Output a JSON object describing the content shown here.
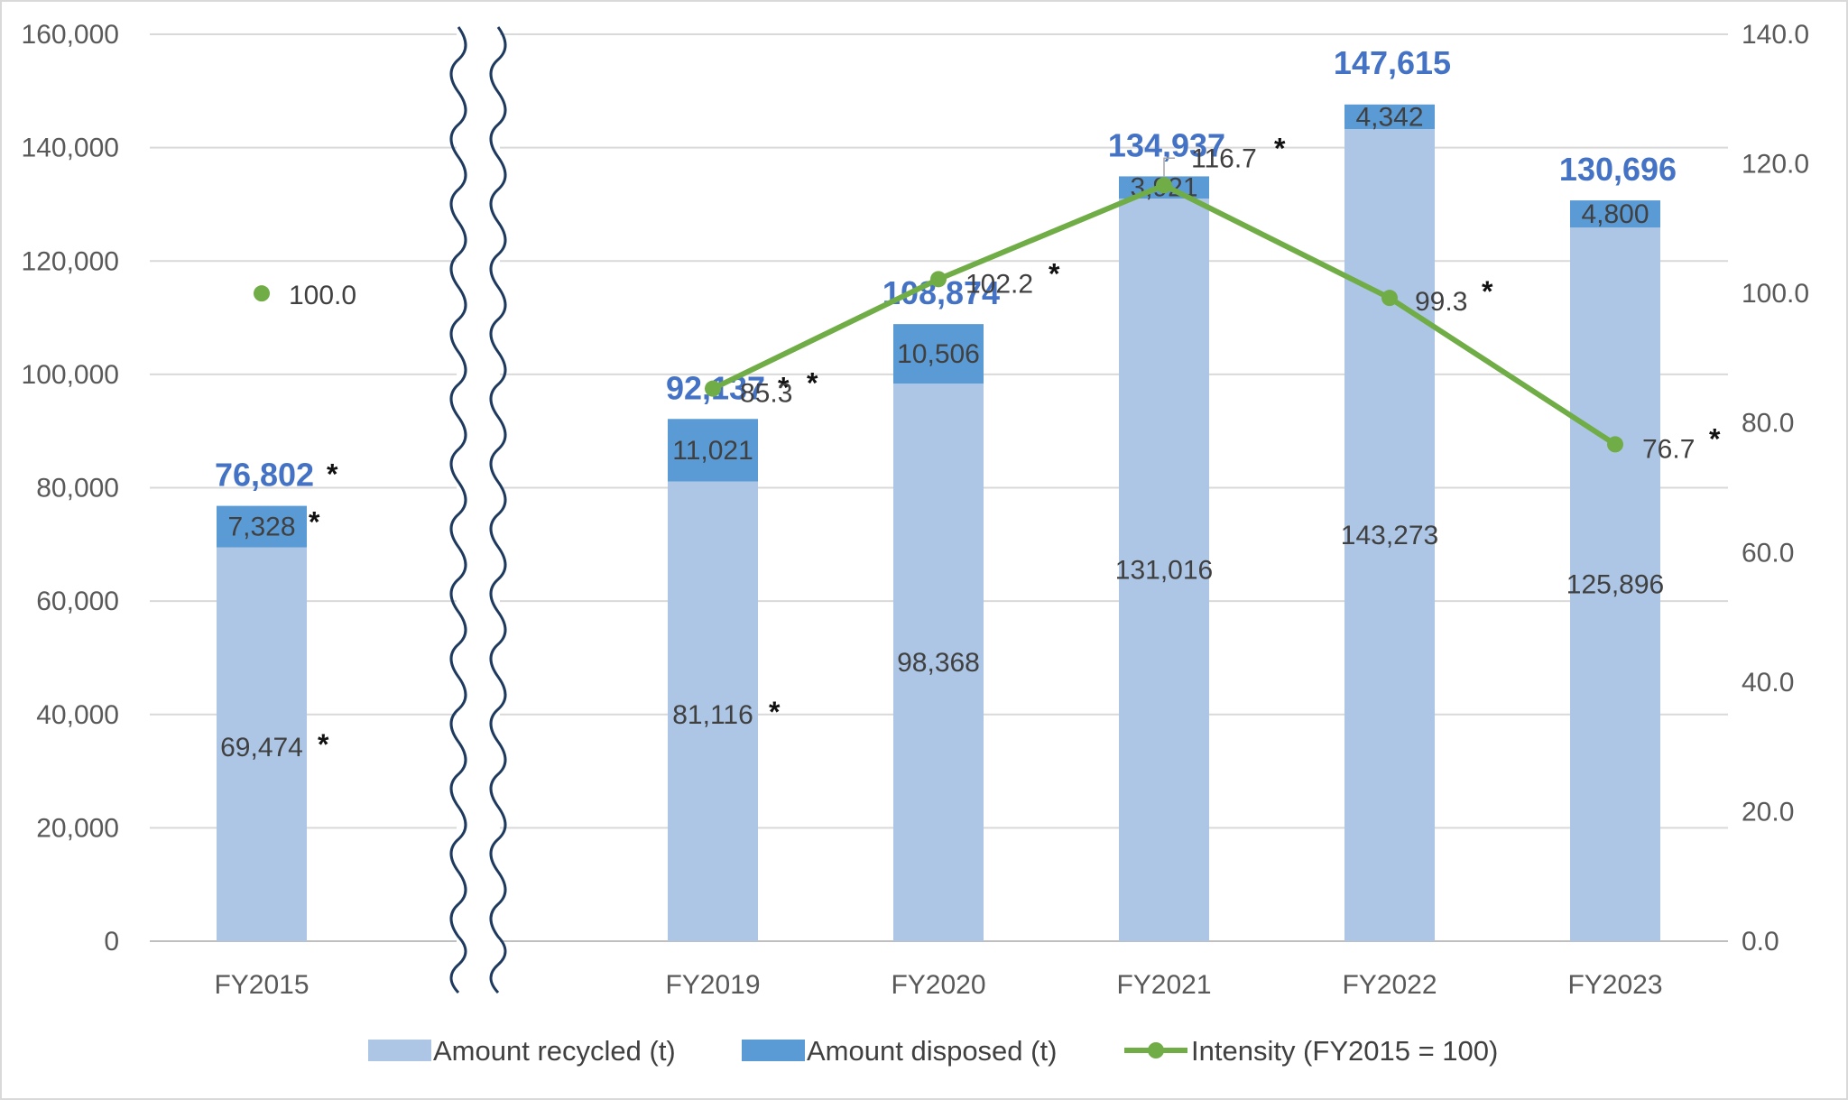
{
  "chart_data": {
    "type": "bar",
    "stacked": true,
    "categories": [
      "FY2015",
      "FY2019",
      "FY2020",
      "FY2021",
      "FY2022",
      "FY2023"
    ],
    "axis_break_after": "FY2015",
    "series": [
      {
        "name": "Amount recycled (t)",
        "type": "bar",
        "axis": "left",
        "color": "#adc6e5",
        "values": [
          69474,
          81116,
          98368,
          131016,
          143273,
          125896
        ],
        "labels": [
          "69,474",
          "81,116",
          "98,368",
          "131,016",
          "143,273",
          "125,896"
        ],
        "starred": [
          true,
          true,
          false,
          false,
          false,
          false
        ]
      },
      {
        "name": "Amount disposed (t)",
        "type": "bar",
        "axis": "left",
        "color": "#5b9bd5",
        "values": [
          7328,
          11021,
          10506,
          3921,
          4342,
          4800
        ],
        "labels": [
          "7,328",
          "11,021",
          "10,506",
          "3,921",
          "4,342",
          "4,800"
        ],
        "starred": [
          true,
          false,
          false,
          false,
          false,
          false
        ]
      },
      {
        "name": "Intensity (FY2015 = 100)",
        "type": "line",
        "axis": "right",
        "color": "#70ad47",
        "values": [
          100.0,
          85.3,
          102.2,
          116.7,
          99.3,
          76.7
        ],
        "labels": [
          "100.0",
          "85.3",
          "102.2",
          "116.7",
          "99.3",
          "76.7"
        ],
        "starred": [
          false,
          true,
          true,
          true,
          true,
          true
        ]
      }
    ],
    "totals": {
      "values": [
        76802,
        92137,
        108874,
        134937,
        147615,
        130696
      ],
      "labels": [
        "76,802",
        "92,137",
        "108,874",
        "134,937",
        "147,615",
        "130,696"
      ],
      "starred": [
        true,
        true,
        false,
        false,
        false,
        false
      ],
      "color": "#4472c4"
    },
    "star_symbol": "*",
    "y_left": {
      "min": 0,
      "max": 160000,
      "ticks": [
        "0",
        "20,000",
        "40,000",
        "60,000",
        "80,000",
        "100,000",
        "120,000",
        "140,000",
        "160,000"
      ]
    },
    "y_right": {
      "min": 0,
      "max": 140,
      "ticks": [
        "0.0",
        "20.0",
        "40.0",
        "60.0",
        "80.0",
        "100.0",
        "120.0",
        "140.0"
      ]
    },
    "grid": true,
    "grid_color": "#d9d9d9",
    "legend_position": "bottom"
  }
}
